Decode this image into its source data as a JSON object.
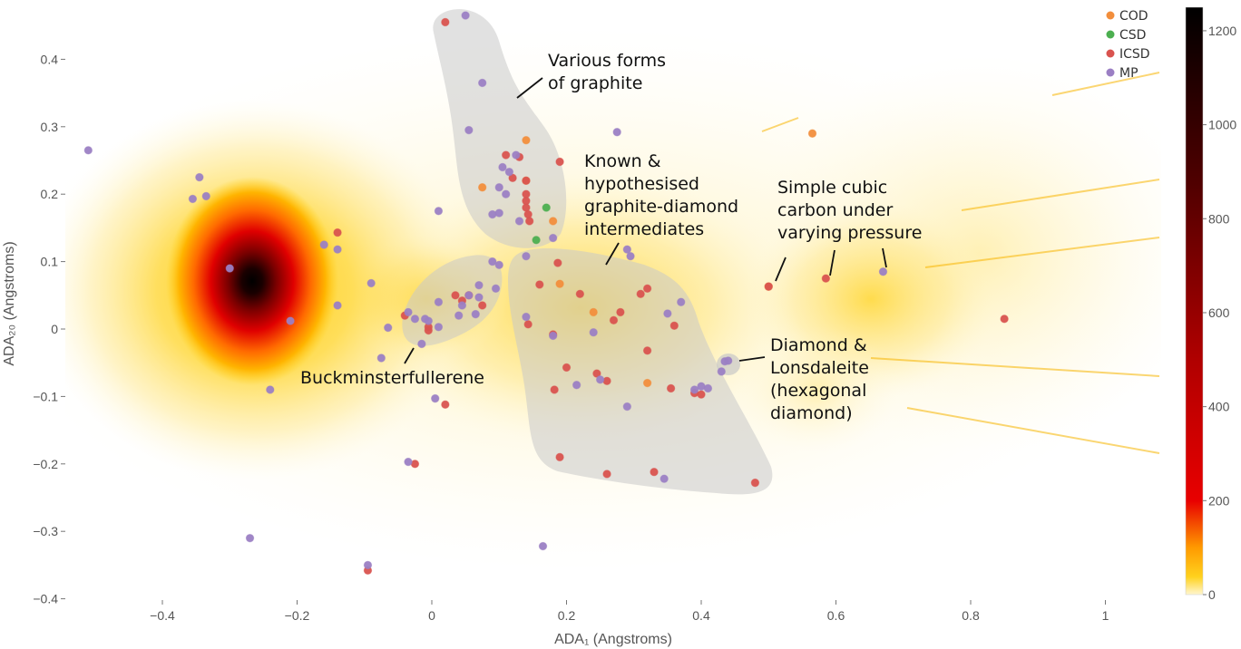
{
  "chart_data": {
    "type": "scatter",
    "title": "",
    "xlabel": "ADA₁ (Angstroms)",
    "ylabel": "ADA₂₀ (Angstroms)",
    "xlim": [
      -0.55,
      1.08
    ],
    "ylim": [
      -0.41,
      0.47
    ],
    "xticks": [
      -0.4,
      -0.2,
      0,
      0.2,
      0.4,
      0.6,
      0.8,
      1
    ],
    "xtick_labels": [
      "−0.4",
      "−0.2",
      "0",
      "0.2",
      "0.4",
      "0.6",
      "0.8",
      "1"
    ],
    "yticks": [
      -0.4,
      -0.3,
      -0.2,
      -0.1,
      0,
      0.1,
      0.2,
      0.3,
      0.4
    ],
    "ytick_labels": [
      "−0.4",
      "−0.3",
      "−0.2",
      "−0.1",
      "0",
      "0.1",
      "0.2",
      "0.3",
      "0.4"
    ],
    "grid": false,
    "legend_position": "top-right",
    "density_background": {
      "description": "hypothetical structures density heatmap",
      "peak": [
        -0.27,
        0.07
      ],
      "colorscale": [
        "#fff8dc",
        "#ffd21e",
        "#ff9a00",
        "#e80000",
        "#7a0000",
        "#000000"
      ]
    },
    "colorbar": {
      "min": 0,
      "max": 1250,
      "ticks": [
        0,
        200,
        400,
        600,
        800,
        1000,
        1200
      ],
      "tick_labels": [
        "0",
        "200",
        "400",
        "600",
        "800",
        "1000",
        "1200"
      ]
    },
    "series": [
      {
        "name": "COD",
        "color": "#f28e3c",
        "points": [
          [
            0.14,
            0.28
          ],
          [
            0.565,
            0.29
          ],
          [
            0.075,
            0.21
          ],
          [
            0.14,
            0.22
          ],
          [
            0.19,
            0.067
          ],
          [
            0.32,
            -0.08
          ],
          [
            0.24,
            0.025
          ],
          [
            0.5,
            0.063
          ],
          [
            0.18,
            0.16
          ]
        ]
      },
      {
        "name": "CSD",
        "color": "#4caf50",
        "points": [
          [
            0.17,
            0.18
          ],
          [
            0.155,
            0.132
          ]
        ]
      },
      {
        "name": "ICSD",
        "color": "#d9534f",
        "points": [
          [
            0.02,
            0.455
          ],
          [
            0.11,
            0.258
          ],
          [
            0.13,
            0.255
          ],
          [
            0.12,
            0.224
          ],
          [
            0.14,
            0.22
          ],
          [
            0.14,
            0.2
          ],
          [
            0.14,
            0.19
          ],
          [
            0.145,
            0.16
          ],
          [
            0.14,
            0.18
          ],
          [
            0.143,
            0.17
          ],
          [
            0.19,
            0.248
          ],
          [
            0.187,
            0.098
          ],
          [
            0.16,
            0.066
          ],
          [
            0.22,
            0.052
          ],
          [
            0.31,
            0.052
          ],
          [
            0.32,
            0.06
          ],
          [
            0.28,
            0.025
          ],
          [
            0.27,
            0.013
          ],
          [
            0.36,
            0.005
          ],
          [
            0.143,
            0.007
          ],
          [
            0.18,
            -0.008
          ],
          [
            0.32,
            -0.032
          ],
          [
            0.2,
            -0.057
          ],
          [
            0.245,
            -0.066
          ],
          [
            0.26,
            -0.077
          ],
          [
            0.355,
            -0.088
          ],
          [
            0.182,
            -0.09
          ],
          [
            0.39,
            -0.095
          ],
          [
            0.4,
            -0.097
          ],
          [
            0.02,
            -0.112
          ],
          [
            0.19,
            -0.19
          ],
          [
            0.33,
            -0.212
          ],
          [
            0.26,
            -0.215
          ],
          [
            0.48,
            -0.228
          ],
          [
            -0.14,
            0.143
          ],
          [
            -0.04,
            0.02
          ],
          [
            -0.005,
            0.003
          ],
          [
            -0.005,
            -0.002
          ],
          [
            0.035,
            0.05
          ],
          [
            0.055,
            0.05
          ],
          [
            0.045,
            0.042
          ],
          [
            0.075,
            0.035
          ],
          [
            0.5,
            0.063
          ],
          [
            0.585,
            0.075
          ],
          [
            0.85,
            0.015
          ],
          [
            -0.025,
            -0.2
          ],
          [
            -0.095,
            -0.358
          ]
        ]
      },
      {
        "name": "MP",
        "color": "#9b7fc4",
        "points": [
          [
            -0.51,
            0.265
          ],
          [
            0.05,
            0.465
          ],
          [
            0.075,
            0.365
          ],
          [
            0.055,
            0.295
          ],
          [
            0.275,
            0.292
          ],
          [
            0.125,
            0.258
          ],
          [
            0.105,
            0.24
          ],
          [
            0.115,
            0.233
          ],
          [
            0.1,
            0.21
          ],
          [
            0.11,
            0.2
          ],
          [
            0.13,
            0.16
          ],
          [
            0.09,
            0.17
          ],
          [
            0.1,
            0.172
          ],
          [
            0.01,
            0.175
          ],
          [
            0.18,
            0.135
          ],
          [
            0.29,
            0.118
          ],
          [
            0.295,
            0.108
          ],
          [
            0.14,
            0.108
          ],
          [
            0.09,
            0.1
          ],
          [
            0.1,
            0.095
          ],
          [
            0.07,
            0.065
          ],
          [
            0.095,
            0.06
          ],
          [
            0.055,
            0.05
          ],
          [
            0.07,
            0.047
          ],
          [
            0.01,
            0.04
          ],
          [
            0.045,
            0.035
          ],
          [
            0.065,
            0.022
          ],
          [
            -0.01,
            0.015
          ],
          [
            0.01,
            0.003
          ],
          [
            0.04,
            0.02
          ],
          [
            -0.005,
            0.012
          ],
          [
            -0.025,
            0.015
          ],
          [
            -0.035,
            0.025
          ],
          [
            0.18,
            -0.01
          ],
          [
            0.14,
            0.018
          ],
          [
            0.24,
            -0.005
          ],
          [
            0.35,
            0.023
          ],
          [
            0.37,
            0.04
          ],
          [
            -0.345,
            0.225
          ],
          [
            -0.355,
            0.193
          ],
          [
            -0.335,
            0.197
          ],
          [
            -0.3,
            0.09
          ],
          [
            -0.21,
            0.012
          ],
          [
            -0.16,
            0.125
          ],
          [
            -0.14,
            0.118
          ],
          [
            -0.14,
            0.035
          ],
          [
            -0.09,
            0.068
          ],
          [
            -0.065,
            0.002
          ],
          [
            -0.075,
            -0.043
          ],
          [
            -0.015,
            -0.022
          ],
          [
            -0.24,
            -0.09
          ],
          [
            0.005,
            -0.103
          ],
          [
            0.25,
            -0.075
          ],
          [
            0.29,
            -0.115
          ],
          [
            0.215,
            -0.083
          ],
          [
            0.39,
            -0.09
          ],
          [
            0.41,
            -0.088
          ],
          [
            0.4,
            -0.085
          ],
          [
            0.435,
            -0.048
          ],
          [
            0.44,
            -0.047
          ],
          [
            0.43,
            -0.063
          ],
          [
            0.67,
            0.085
          ],
          [
            0.345,
            -0.222
          ],
          [
            -0.035,
            -0.197
          ],
          [
            -0.27,
            -0.31
          ],
          [
            0.165,
            -0.322
          ],
          [
            -0.095,
            -0.35
          ]
        ]
      }
    ],
    "regions": [
      {
        "name": "graphite",
        "label": [
          "Various forms",
          "of graphite"
        ]
      },
      {
        "name": "intermediates",
        "label": [
          "Known &",
          "hypothesised",
          "graphite-diamond",
          "intermediates"
        ]
      },
      {
        "name": "fullerene",
        "label": [
          "Buckminsterfullerene"
        ]
      },
      {
        "name": "diamond",
        "label": [
          "Diamond &",
          "Lonsdaleite",
          "(hexagonal",
          "diamond)"
        ]
      },
      {
        "name": "simple-cubic",
        "label": [
          "Simple cubic",
          "carbon under",
          "varying pressure"
        ]
      }
    ]
  }
}
